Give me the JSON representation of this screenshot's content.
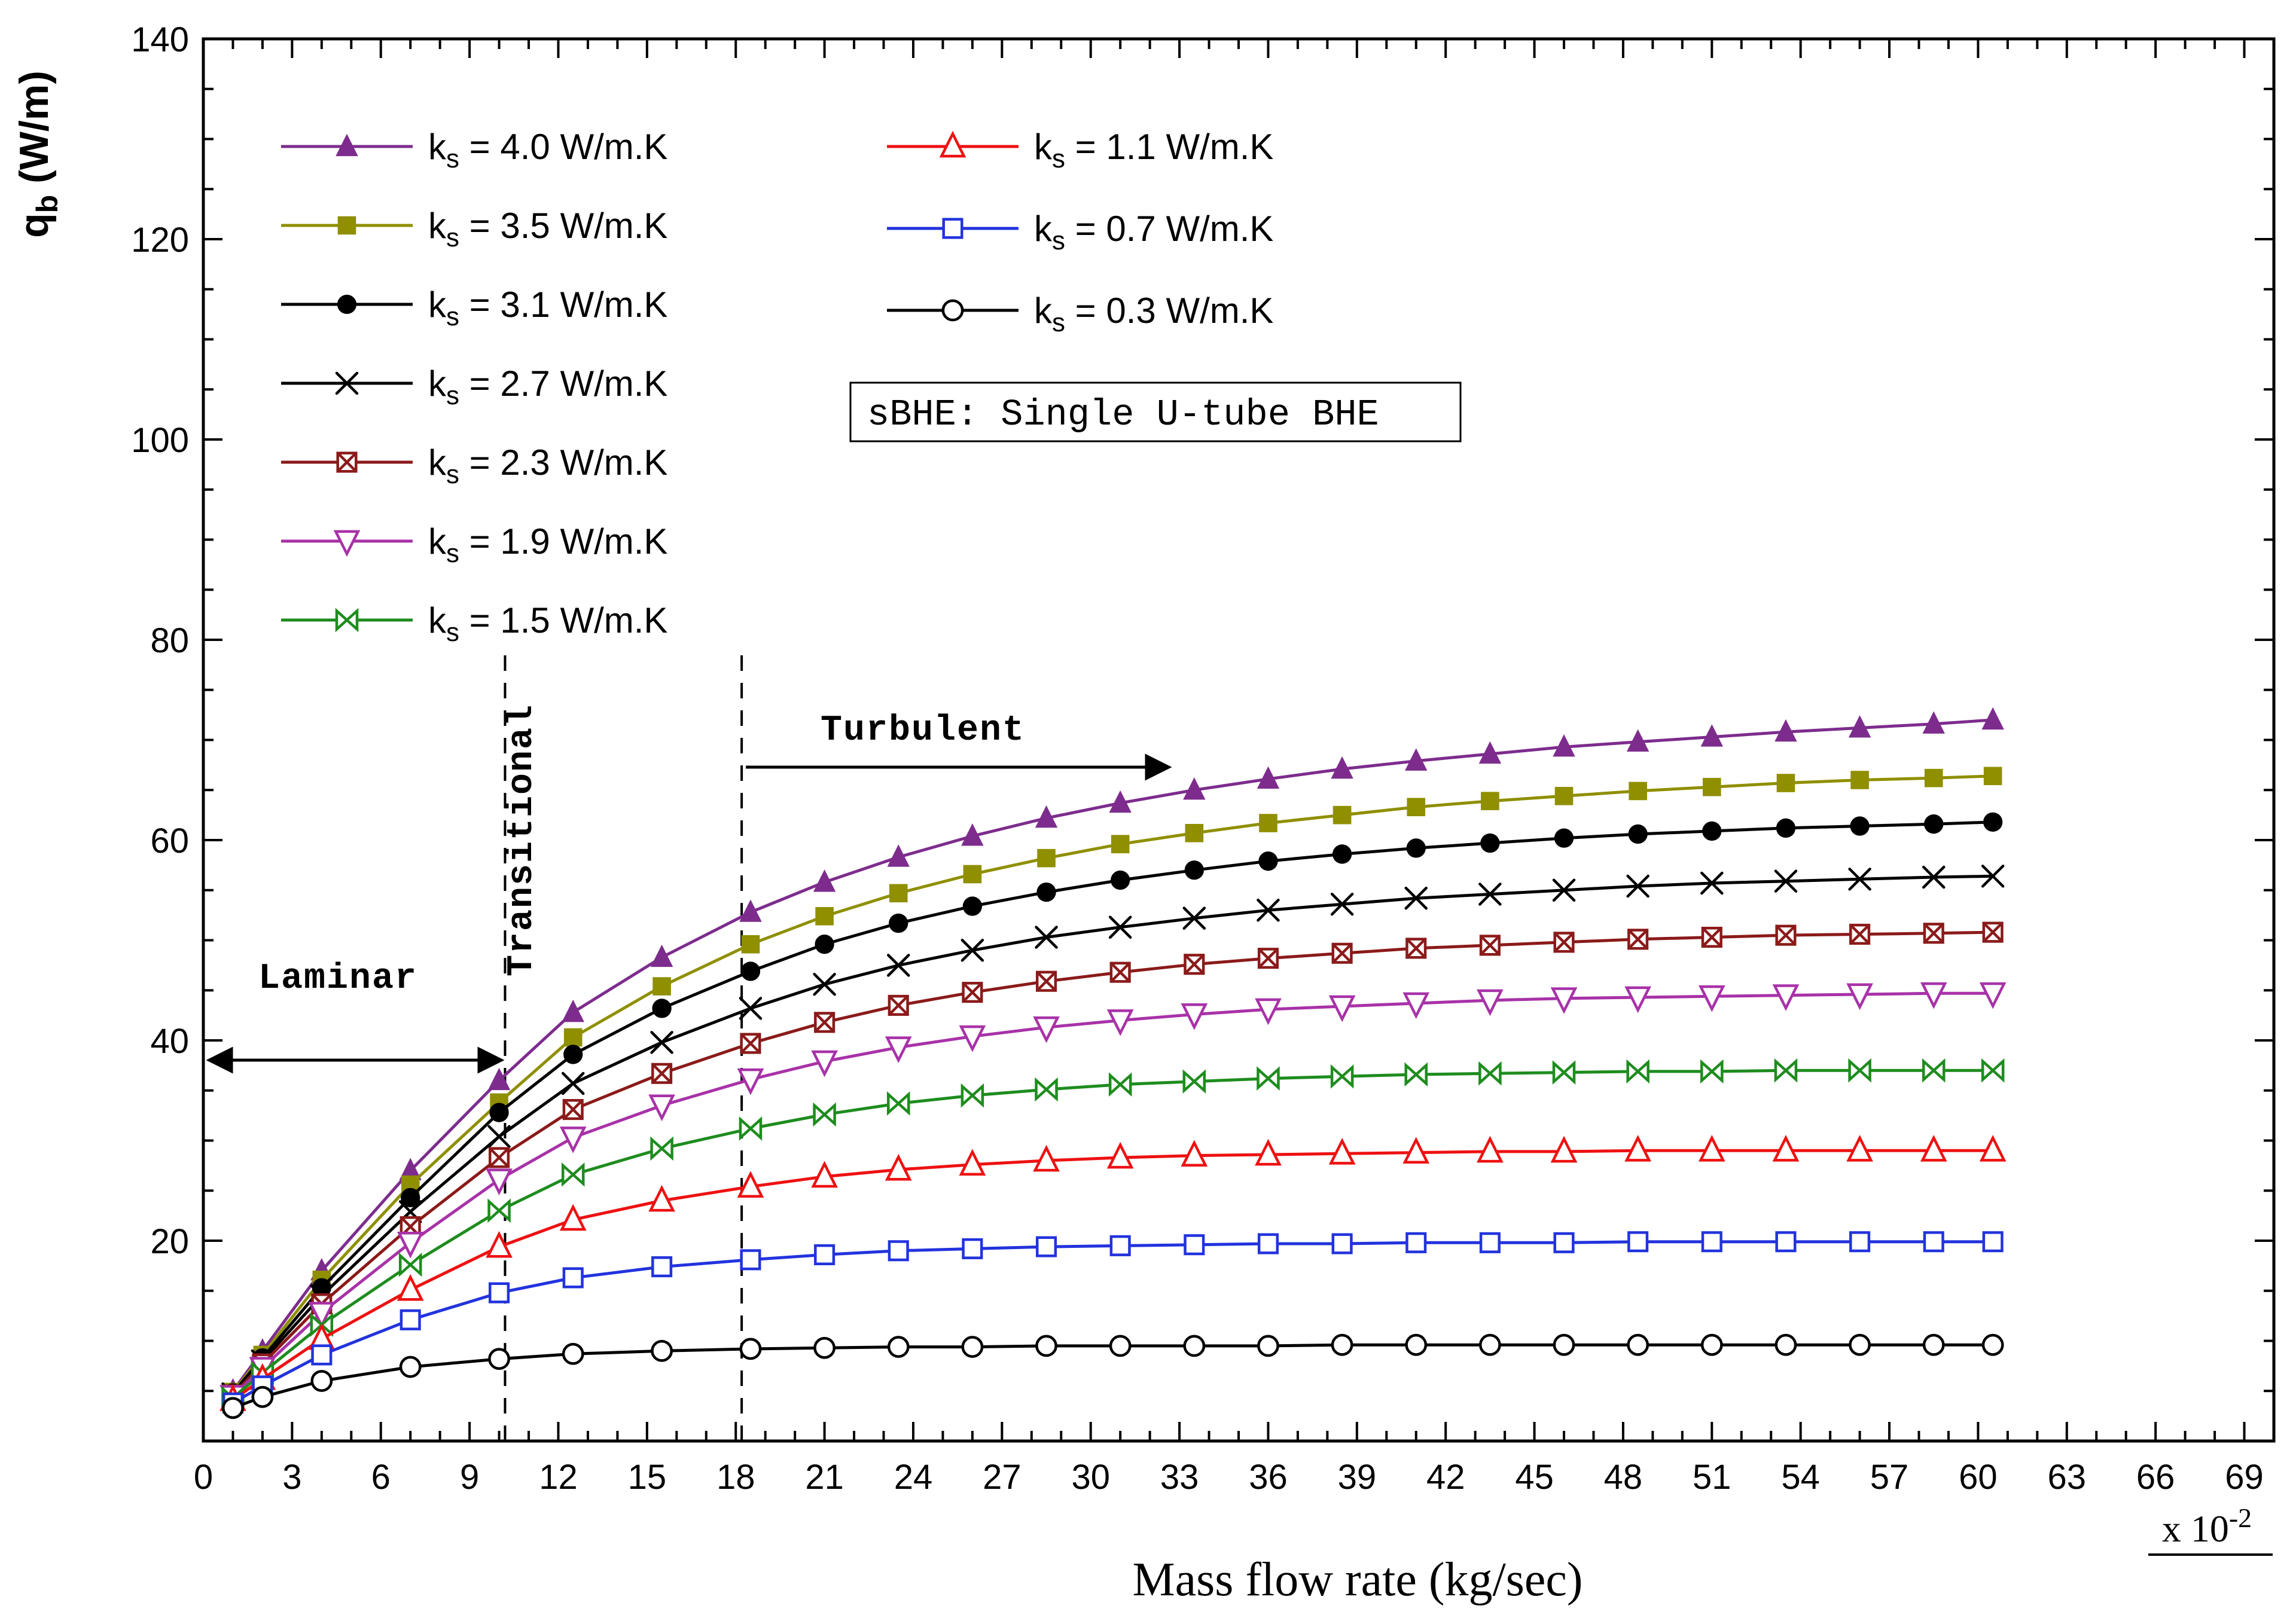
{
  "chart_data": {
    "type": "line",
    "title": "",
    "xlabel": "Mass flow rate (kg/sec)",
    "x_multiplier": {
      "base": "x 10",
      "exp": "-2"
    },
    "ylabel": {
      "main": "q",
      "sub": "b",
      "rest": " (W/m)"
    },
    "xlim": [
      0,
      70
    ],
    "ylim": [
      0,
      140
    ],
    "x_ticks": [
      0,
      3,
      6,
      9,
      12,
      15,
      18,
      21,
      24,
      27,
      30,
      33,
      36,
      39,
      42,
      45,
      48,
      51,
      54,
      57,
      60,
      63,
      66,
      69
    ],
    "y_ticks": [
      20,
      40,
      60,
      80,
      100,
      120,
      140
    ],
    "x_minor_step": 1,
    "y_minor_step": 5,
    "grid": false,
    "legend_position": "top-left-inside-two-columns",
    "legend": {
      "prefix": "k",
      "sub": "s",
      "equals": " = ",
      "suffix": " W/m.K"
    },
    "x": [
      1,
      2,
      4,
      7,
      10,
      12.5,
      15.5,
      18.5,
      21,
      23.5,
      26,
      28.5,
      31,
      33.5,
      36,
      38.5,
      41,
      43.5,
      46,
      48.5,
      51,
      53.5,
      56,
      58.5,
      60.5
    ],
    "series": [
      {
        "ks": "4.0",
        "label": "k_s = 4.0 W/m.K",
        "color": "#7D2C8D",
        "marker": "triangle-up-filled",
        "values": [
          5.0,
          9.0,
          17.0,
          27.0,
          36.0,
          42.8,
          48.3,
          52.8,
          55.8,
          58.3,
          60.4,
          62.2,
          63.7,
          65.0,
          66.1,
          67.1,
          67.9,
          68.6,
          69.3,
          69.8,
          70.3,
          70.8,
          71.2,
          71.6,
          72.0
        ]
      },
      {
        "ks": "3.5",
        "label": "k_s = 3.5 W/m.K",
        "color": "#8F8F00",
        "marker": "square-filled",
        "values": [
          4.9,
          8.6,
          16.1,
          25.6,
          33.8,
          40.3,
          45.4,
          49.6,
          52.4,
          54.7,
          56.6,
          58.2,
          59.6,
          60.7,
          61.7,
          62.5,
          63.3,
          63.9,
          64.4,
          64.9,
          65.3,
          65.7,
          66.0,
          66.2,
          66.4
        ]
      },
      {
        "ks": "3.1",
        "label": "k_s = 3.1 W/m.K",
        "color": "#000000",
        "marker": "circle-filled",
        "values": [
          4.8,
          8.3,
          15.3,
          24.3,
          32.8,
          38.6,
          43.2,
          46.9,
          49.6,
          51.7,
          53.4,
          54.8,
          56.0,
          57.0,
          57.9,
          58.6,
          59.2,
          59.7,
          60.2,
          60.6,
          60.9,
          61.2,
          61.4,
          61.6,
          61.8
        ]
      },
      {
        "ks": "2.7",
        "label": "k_s = 2.7 W/m.K",
        "color": "#000000",
        "marker": "x-cross",
        "values": [
          4.7,
          8.0,
          14.5,
          22.9,
          30.4,
          35.7,
          39.8,
          43.2,
          45.6,
          47.5,
          49.0,
          50.3,
          51.3,
          52.2,
          53.0,
          53.6,
          54.2,
          54.6,
          55.0,
          55.4,
          55.7,
          55.9,
          56.1,
          56.3,
          56.4
        ]
      },
      {
        "ks": "2.3",
        "label": "k_s = 2.3 W/m.K",
        "color": "#8B1A1A",
        "marker": "square-x-open",
        "values": [
          4.6,
          7.7,
          13.7,
          21.4,
          28.3,
          33.1,
          36.7,
          39.7,
          41.8,
          43.5,
          44.8,
          45.9,
          46.8,
          47.6,
          48.2,
          48.7,
          49.2,
          49.5,
          49.8,
          50.1,
          50.3,
          50.5,
          50.6,
          50.7,
          50.8
        ]
      },
      {
        "ks": "1.9",
        "label": "k_s = 1.9 W/m.K",
        "color": "#A832A8",
        "marker": "triangle-down-open",
        "values": [
          4.5,
          7.3,
          12.8,
          19.8,
          26.1,
          30.3,
          33.5,
          36.1,
          37.9,
          39.3,
          40.4,
          41.3,
          42.0,
          42.6,
          43.1,
          43.4,
          43.7,
          44.0,
          44.2,
          44.3,
          44.4,
          44.5,
          44.6,
          44.7,
          44.7
        ]
      },
      {
        "ks": "1.5",
        "label": "k_s = 1.5 W/m.K",
        "color": "#1E8C1E",
        "marker": "bowtie-open",
        "values": [
          4.3,
          6.8,
          11.6,
          17.6,
          23.0,
          26.6,
          29.2,
          31.2,
          32.6,
          33.7,
          34.5,
          35.1,
          35.6,
          35.9,
          36.2,
          36.4,
          36.6,
          36.7,
          36.8,
          36.9,
          36.9,
          37.0,
          37.0,
          37.0,
          37.0
        ]
      },
      {
        "ks": "1.1",
        "label": "k_s = 1.1 W/m.K",
        "color": "#EE1111",
        "marker": "triangle-up-open",
        "values": [
          4.1,
          6.2,
          10.2,
          15.1,
          19.4,
          22.1,
          24.0,
          25.4,
          26.4,
          27.1,
          27.6,
          28.0,
          28.3,
          28.5,
          28.6,
          28.7,
          28.8,
          28.9,
          28.9,
          29.0,
          29.0,
          29.0,
          29.0,
          29.0,
          29.0
        ]
      },
      {
        "ks": "0.7",
        "label": "k_s = 0.7 W/m.K",
        "color": "#2233DD",
        "marker": "square-open",
        "values": [
          3.8,
          5.5,
          8.6,
          12.1,
          14.8,
          16.3,
          17.4,
          18.1,
          18.6,
          19.0,
          19.2,
          19.4,
          19.5,
          19.6,
          19.7,
          19.7,
          19.8,
          19.8,
          19.8,
          19.9,
          19.9,
          19.9,
          19.9,
          19.9,
          19.9
        ]
      },
      {
        "ks": "0.3",
        "label": "k_s = 0.3 W/m.K",
        "color": "#000000",
        "marker": "circle-open",
        "values": [
          3.3,
          4.4,
          6.0,
          7.4,
          8.2,
          8.7,
          9.0,
          9.2,
          9.3,
          9.4,
          9.4,
          9.5,
          9.5,
          9.5,
          9.5,
          9.6,
          9.6,
          9.6,
          9.6,
          9.6,
          9.6,
          9.6,
          9.6,
          9.6,
          9.6
        ]
      }
    ],
    "annotations": {
      "note": "sBHE: Single U-tube BHE",
      "flow_regimes": {
        "laminar": {
          "label": "Laminar",
          "end_x": 10.2
        },
        "transitional": {
          "label": "Transitional",
          "end_x": 18.2
        },
        "turbulent": {
          "label": "Turbulent"
        }
      }
    }
  }
}
